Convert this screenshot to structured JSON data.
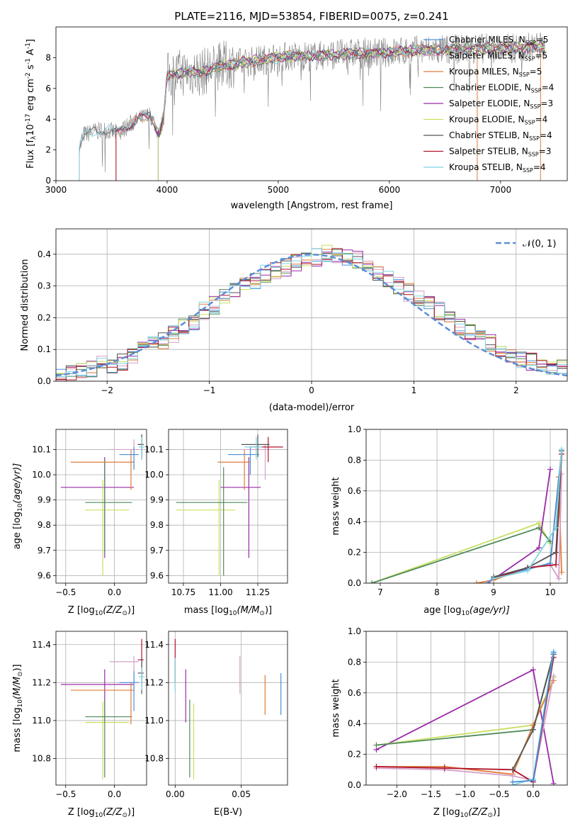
{
  "title": "PLATE=2116, MJD=53854, FIBERID=0075, z=0.241",
  "colors": {
    "chabrier_miles": "#4a90d9",
    "salpeter_miles": "#d4a0c8",
    "kroupa_miles": "#e07b39",
    "chabrier_elodie": "#4f8a5a",
    "salpeter_elodie": "#9a2aa8",
    "kroupa_elodie": "#c8e060",
    "chabrier_stelib": "#555555",
    "salpeter_stelib": "#b0142c",
    "kroupa_stelib": "#7dd4e0",
    "gauss": "#5b8dd9",
    "grid": "#b0b0b0",
    "spectrum": "#808080"
  },
  "chart_data": [
    {
      "type": "line",
      "title": "PLATE=2116, MJD=53854, FIBERID=0075, z=0.241",
      "xlabel": "wavelength [Angstrom, rest frame]",
      "ylabel_main": "Flux [f",
      "ylabel_sub": "λ",
      "ylabel_rest": "10",
      "ylabel_exp1": "-17",
      "ylabel_mid": " erg cm",
      "ylabel_exp2": "-2",
      "ylabel_mid2": " s",
      "ylabel_exp3": "-1",
      "ylabel_end": " A",
      "ylabel_exp4": "-1",
      "ylabel_close": "]",
      "xlim": [
        3000,
        7600
      ],
      "ylim": [
        0,
        10
      ],
      "xticks": [
        "3000",
        "4000",
        "5000",
        "6000",
        "7000"
      ],
      "yticks": [
        "0",
        "2",
        "4",
        "6",
        "8"
      ],
      "legend": [
        {
          "name": "Chabrier MILES, N",
          "sub": "SSP",
          "rest": "=5",
          "color_key": "chabrier_miles"
        },
        {
          "name": "Salpeter MILES, N",
          "sub": "SSP",
          "rest": "=5",
          "color_key": "salpeter_miles"
        },
        {
          "name": "Kroupa MILES, N",
          "sub": "SSP",
          "rest": "=5",
          "color_key": "kroupa_miles"
        },
        {
          "name": "Chabrier ELODIE, N",
          "sub": "SSP",
          "rest": "=4",
          "color_key": "chabrier_elodie"
        },
        {
          "name": "Salpeter ELODIE, N",
          "sub": "SSP",
          "rest": "=3",
          "color_key": "salpeter_elodie"
        },
        {
          "name": "Kroupa ELODIE, N",
          "sub": "SSP",
          "rest": "=4",
          "color_key": "kroupa_elodie"
        },
        {
          "name": "Chabrier STELIB, N",
          "sub": "SSP",
          "rest": "=4",
          "color_key": "chabrier_stelib"
        },
        {
          "name": "Salpeter STELIB, N",
          "sub": "SSP",
          "rest": "=3",
          "color_key": "salpeter_stelib"
        },
        {
          "name": "Kroupa STELIB, N",
          "sub": "SSP",
          "rest": "=4",
          "color_key": "kroupa_stelib"
        }
      ],
      "continuum": [
        [
          3210,
          2.2
        ],
        [
          3250,
          3.0
        ],
        [
          3350,
          3.2
        ],
        [
          3450,
          3.3
        ],
        [
          3550,
          3.1
        ],
        [
          3650,
          3.6
        ],
        [
          3750,
          4.0
        ],
        [
          3850,
          4.3
        ],
        [
          3930,
          3.0
        ],
        [
          3970,
          4.2
        ],
        [
          4000,
          6.8
        ],
        [
          4100,
          7.0
        ],
        [
          4200,
          7.1
        ],
        [
          4300,
          7.0
        ],
        [
          4400,
          7.3
        ],
        [
          4500,
          7.5
        ],
        [
          4700,
          7.7
        ],
        [
          4900,
          7.9
        ],
        [
          5100,
          8.1
        ],
        [
          5300,
          8.1
        ],
        [
          5500,
          8.2
        ],
        [
          5700,
          8.3
        ],
        [
          5900,
          8.3
        ],
        [
          6100,
          8.4
        ],
        [
          6300,
          8.5
        ],
        [
          6500,
          8.5
        ],
        [
          6700,
          8.6
        ],
        [
          6900,
          8.6
        ],
        [
          7100,
          8.6
        ],
        [
          7300,
          8.7
        ]
      ],
      "model_starts": {
        "chabrier_miles": 3540,
        "salpeter_miles": 3540,
        "kroupa_miles": 3540,
        "chabrier_elodie": 3920,
        "salpeter_elodie": 3920,
        "kroupa_elodie": 3920,
        "chabrier_stelib": 3210,
        "salpeter_stelib": 3540,
        "kroupa_stelib": 3210
      }
    },
    {
      "type": "histogram",
      "xlabel": "(data-model)/error",
      "ylabel": "Normed distribution",
      "xlim": [
        -2.5,
        2.5
      ],
      "ylim": [
        0,
        0.48
      ],
      "xticks": [
        "−2",
        "−1",
        "0",
        "1",
        "2"
      ],
      "yticks": [
        "0.0",
        "0.1",
        "0.2",
        "0.3",
        "0.4"
      ],
      "legend_label": "𝒩(0, 1)",
      "bin_edges_start": -2.5,
      "bin_width": 0.1,
      "heights": [
        0.02,
        0.025,
        0.03,
        0.04,
        0.05,
        0.05,
        0.06,
        0.08,
        0.1,
        0.12,
        0.13,
        0.15,
        0.17,
        0.19,
        0.22,
        0.24,
        0.26,
        0.28,
        0.3,
        0.32,
        0.34,
        0.35,
        0.36,
        0.37,
        0.38,
        0.39,
        0.4,
        0.4,
        0.39,
        0.38,
        0.36,
        0.34,
        0.32,
        0.3,
        0.28,
        0.26,
        0.24,
        0.22,
        0.19,
        0.17,
        0.15,
        0.13,
        0.12,
        0.1,
        0.08,
        0.07,
        0.06,
        0.05,
        0.045,
        0.04
      ]
    },
    {
      "type": "scatter",
      "id": "age_vs_Z",
      "xlabel": "Z [log",
      "ylabel": "age  [log",
      "xlim": [
        -0.6,
        0.33
      ],
      "ylim": [
        9.57,
        10.18
      ],
      "xticks": [
        "−0.5",
        "0.0"
      ],
      "yticks": [
        "9.6",
        "9.7",
        "9.8",
        "9.9",
        "10.0",
        "10.1"
      ],
      "points": [
        {
          "k": "salpeter_elodie",
          "x": -0.1,
          "y": 9.95,
          "xlo": -0.55,
          "xhi": 0.2,
          "ylo": 9.67,
          "yhi": 10.07
        },
        {
          "k": "kroupa_elodie",
          "x": -0.12,
          "y": 9.86,
          "xlo": -0.3,
          "xhi": 0.15,
          "ylo": 9.6,
          "yhi": 9.98
        },
        {
          "k": "chabrier_elodie",
          "x": -0.1,
          "y": 9.89,
          "xlo": -0.3,
          "xhi": 0.18,
          "ylo": 9.69,
          "yhi": 10.06
        },
        {
          "k": "kroupa_miles",
          "x": 0.17,
          "y": 10.05,
          "xlo": -0.45,
          "xhi": 0.2,
          "ylo": 9.94,
          "yhi": 10.1
        },
        {
          "k": "salpeter_miles",
          "x": 0.2,
          "y": 10.1,
          "xlo": -0.05,
          "xhi": 0.25,
          "ylo": 10.02,
          "yhi": 10.14
        },
        {
          "k": "chabrier_miles",
          "x": 0.2,
          "y": 10.08,
          "xlo": 0.05,
          "xhi": 0.25,
          "ylo": 10.02,
          "yhi": 10.11
        },
        {
          "k": "salpeter_stelib",
          "x": 0.28,
          "y": 10.12,
          "xlo": 0.24,
          "xhi": 0.3,
          "ylo": 10.06,
          "yhi": 10.16
        },
        {
          "k": "chabrier_stelib",
          "x": 0.28,
          "y": 10.12,
          "xlo": 0.24,
          "xhi": 0.3,
          "ylo": 10.07,
          "yhi": 10.16
        },
        {
          "k": "kroupa_stelib",
          "x": 0.28,
          "y": 10.11,
          "xlo": 0.25,
          "xhi": 0.31,
          "ylo": 10.06,
          "yhi": 10.15
        }
      ]
    },
    {
      "type": "scatter",
      "id": "age_vs_mass",
      "xlabel": "mass [log",
      "xlim": [
        10.65,
        11.45
      ],
      "ylim": [
        9.57,
        10.18
      ],
      "xticks": [
        "10.75",
        "11.00",
        "11.25"
      ],
      "yticks": [
        "9.6",
        "9.7",
        "9.8",
        "9.9",
        "10.0",
        "10.1"
      ],
      "points": [
        {
          "k": "salpeter_elodie",
          "x": 11.19,
          "y": 9.95,
          "xlo": 11.0,
          "xhi": 11.27,
          "ylo": 9.67,
          "yhi": 10.07
        },
        {
          "k": "kroupa_elodie",
          "x": 10.99,
          "y": 9.86,
          "xlo": 10.7,
          "xhi": 11.1,
          "ylo": 9.6,
          "yhi": 9.98
        },
        {
          "k": "chabrier_elodie",
          "x": 11.02,
          "y": 9.89,
          "xlo": 10.7,
          "xhi": 11.18,
          "ylo": 9.6,
          "yhi": 10.03
        },
        {
          "k": "kroupa_miles",
          "x": 11.16,
          "y": 10.05,
          "xlo": 10.98,
          "xhi": 11.2,
          "ylo": 9.94,
          "yhi": 10.1
        },
        {
          "k": "salpeter_miles",
          "x": 11.3,
          "y": 10.1,
          "xlo": 11.15,
          "xhi": 11.34,
          "ylo": 9.98,
          "yhi": 10.12
        },
        {
          "k": "chabrier_miles",
          "x": 11.2,
          "y": 10.08,
          "xlo": 11.05,
          "xhi": 11.26,
          "ylo": 10.0,
          "yhi": 10.11
        },
        {
          "k": "salpeter_stelib",
          "x": 11.32,
          "y": 10.11,
          "xlo": 11.2,
          "xhi": 11.42,
          "ylo": 10.05,
          "yhi": 10.15
        },
        {
          "k": "chabrier_stelib",
          "x": 11.25,
          "y": 10.12,
          "xlo": 11.14,
          "xhi": 11.33,
          "ylo": 10.07,
          "yhi": 10.16
        },
        {
          "k": "kroupa_stelib",
          "x": 11.24,
          "y": 10.11,
          "xlo": 11.16,
          "xhi": 11.28,
          "ylo": 10.06,
          "yhi": 10.15
        }
      ]
    },
    {
      "type": "line",
      "id": "weight_vs_age",
      "xlabel": "age  [log",
      "ylabel": "mass weight",
      "xlim": [
        6.75,
        10.3
      ],
      "ylim": [
        0,
        1
      ],
      "xticks": [
        "7",
        "8",
        "9",
        "10"
      ],
      "yticks": [
        "0.0",
        "0.2",
        "0.4",
        "0.6",
        "0.8",
        "1.0"
      ],
      "series": [
        {
          "k": "kroupa_elodie",
          "x": [
            6.85,
            9.8,
            10.0
          ],
          "y": [
            0.0,
            0.39,
            0.26
          ]
        },
        {
          "k": "chabrier_elodie",
          "x": [
            6.85,
            9.8,
            10.0
          ],
          "y": [
            0.0,
            0.36,
            0.27
          ]
        },
        {
          "k": "salpeter_elodie",
          "x": [
            8.9,
            9.8,
            10.0
          ],
          "y": [
            0.0,
            0.23,
            0.74
          ]
        },
        {
          "k": "kroupa_miles",
          "x": [
            8.7,
            9.0,
            9.6,
            10.0,
            10.15,
            10.2
          ],
          "y": [
            0.0,
            0.02,
            0.1,
            0.12,
            0.69,
            0.07
          ]
        },
        {
          "k": "salpeter_miles",
          "x": [
            8.9,
            9.0,
            9.6,
            10.0,
            10.15,
            10.2
          ],
          "y": [
            0.0,
            0.03,
            0.1,
            0.12,
            0.03,
            0.71
          ]
        },
        {
          "k": "chabrier_miles",
          "x": [
            8.9,
            9.0,
            9.6,
            10.0,
            10.2
          ],
          "y": [
            0.0,
            0.04,
            0.09,
            0.13,
            0.86
          ]
        },
        {
          "k": "salpeter_stelib",
          "x": [
            9.0,
            9.6,
            10.1,
            10.2
          ],
          "y": [
            0.03,
            0.1,
            0.12,
            0.84
          ]
        },
        {
          "k": "chabrier_stelib",
          "x": [
            9.0,
            9.6,
            10.1,
            10.2
          ],
          "y": [
            0.04,
            0.1,
            0.2,
            0.86
          ]
        },
        {
          "k": "kroupa_stelib",
          "x": [
            9.0,
            9.6,
            10.1,
            10.2
          ],
          "y": [
            0.03,
            0.08,
            0.36,
            0.87
          ]
        }
      ]
    },
    {
      "type": "scatter",
      "id": "mass_vs_Z",
      "xlabel": "Z [log",
      "ylabel": "mass [log",
      "xlim": [
        -0.6,
        0.33
      ],
      "ylim": [
        10.66,
        11.47
      ],
      "xticks": [
        "−0.5",
        "0.0"
      ],
      "yticks": [
        "10.8",
        "11.0",
        "11.2",
        "11.4"
      ],
      "points": [
        {
          "k": "salpeter_elodie",
          "x": -0.1,
          "y": 11.19,
          "xlo": -0.55,
          "xhi": 0.2,
          "ylo": 11.0,
          "yhi": 11.27
        },
        {
          "k": "kroupa_elodie",
          "x": -0.12,
          "y": 10.99,
          "xlo": -0.3,
          "xhi": 0.15,
          "ylo": 10.69,
          "yhi": 11.1
        },
        {
          "k": "chabrier_elodie",
          "x": -0.1,
          "y": 11.02,
          "xlo": -0.3,
          "xhi": 0.18,
          "ylo": 10.7,
          "yhi": 11.11
        },
        {
          "k": "kroupa_miles",
          "x": 0.17,
          "y": 11.16,
          "xlo": -0.45,
          "xhi": 0.2,
          "ylo": 10.98,
          "yhi": 11.2
        },
        {
          "k": "salpeter_miles",
          "x": 0.2,
          "y": 11.31,
          "xlo": -0.05,
          "xhi": 0.25,
          "ylo": 11.15,
          "yhi": 11.34
        },
        {
          "k": "chabrier_miles",
          "x": 0.2,
          "y": 11.2,
          "xlo": 0.05,
          "xhi": 0.25,
          "ylo": 11.05,
          "yhi": 11.26
        },
        {
          "k": "salpeter_stelib",
          "x": 0.28,
          "y": 11.32,
          "xlo": 0.24,
          "xhi": 0.3,
          "ylo": 11.2,
          "yhi": 11.43
        },
        {
          "k": "chabrier_stelib",
          "x": 0.28,
          "y": 11.25,
          "xlo": 0.24,
          "xhi": 0.3,
          "ylo": 11.14,
          "yhi": 11.33
        },
        {
          "k": "kroupa_stelib",
          "x": 0.28,
          "y": 11.23,
          "xlo": 0.25,
          "xhi": 0.31,
          "ylo": 11.16,
          "yhi": 11.28
        }
      ]
    },
    {
      "type": "scatter",
      "id": "mass_vs_ebv",
      "xlabel": "E(B-V)",
      "xlim": [
        -0.005,
        0.085
      ],
      "ylim": [
        10.66,
        11.47
      ],
      "xticks": [
        "0.00",
        "0.05"
      ],
      "yticks": [
        "10.8",
        "11.0",
        "11.2",
        "11.4"
      ],
      "points": [
        {
          "k": "salpeter_stelib",
          "x": 0.0,
          "ylo": 11.2,
          "yhi": 11.43
        },
        {
          "k": "kroupa_stelib",
          "x": 0.0,
          "ylo": 11.15,
          "yhi": 11.33
        },
        {
          "k": "salpeter_elodie",
          "x": 0.008,
          "ylo": 10.99,
          "yhi": 11.27
        },
        {
          "k": "chabrier_elodie",
          "x": 0.011,
          "ylo": 10.7,
          "yhi": 11.11
        },
        {
          "k": "kroupa_elodie",
          "x": 0.014,
          "ylo": 10.69,
          "yhi": 11.09
        },
        {
          "k": "salpeter_miles",
          "x": 0.049,
          "ylo": 11.14,
          "yhi": 11.34
        },
        {
          "k": "kroupa_miles",
          "x": 0.068,
          "ylo": 11.03,
          "yhi": 11.24
        },
        {
          "k": "chabrier_miles",
          "x": 0.08,
          "ylo": 11.03,
          "yhi": 11.25
        }
      ]
    },
    {
      "type": "line",
      "id": "weight_vs_Z",
      "xlabel": "Z [log",
      "ylabel": "mass weight",
      "xlim": [
        -2.45,
        0.5
      ],
      "ylim": [
        0,
        1
      ],
      "xticks": [
        "−2.0",
        "−1.5",
        "−1.0",
        "−0.5",
        "0.0"
      ],
      "yticks": [
        "0.0",
        "0.2",
        "0.4",
        "0.6",
        "0.8",
        "1.0"
      ],
      "series": [
        {
          "k": "salpeter_elodie",
          "x": [
            -2.3,
            0.0,
            0.3
          ],
          "y": [
            0.23,
            0.75,
            0.01
          ]
        },
        {
          "k": "kroupa_elodie",
          "x": [
            -2.3,
            0.0,
            0.3
          ],
          "y": [
            0.26,
            0.39,
            0.7
          ]
        },
        {
          "k": "chabrier_elodie",
          "x": [
            -2.3,
            0.0,
            0.3
          ],
          "y": [
            0.26,
            0.36,
            0.86
          ]
        },
        {
          "k": "kroupa_miles",
          "x": [
            -2.3,
            -1.3,
            -0.3,
            0.0,
            0.3
          ],
          "y": [
            0.12,
            0.12,
            0.07,
            0.39,
            0.68
          ]
        },
        {
          "k": "salpeter_miles",
          "x": [
            -2.3,
            -1.3,
            -0.3,
            0.0,
            0.3
          ],
          "y": [
            0.11,
            0.1,
            0.06,
            0.03,
            0.71
          ]
        },
        {
          "k": "salpeter_stelib",
          "x": [
            -2.3,
            -1.3,
            -0.3,
            0.0,
            0.3
          ],
          "y": [
            0.12,
            0.11,
            0.1,
            0.02,
            0.83
          ]
        },
        {
          "k": "chabrier_stelib",
          "x": [
            -0.3,
            0.0,
            0.3
          ],
          "y": [
            0.1,
            0.36,
            0.85
          ]
        },
        {
          "k": "kroupa_stelib",
          "x": [
            -0.3,
            0.0,
            0.3
          ],
          "y": [
            0.0,
            0.04,
            0.87
          ]
        },
        {
          "k": "chabrier_miles",
          "x": [
            -0.3,
            0.0,
            0.3
          ],
          "y": [
            0.02,
            0.03,
            0.86
          ]
        }
      ]
    }
  ]
}
